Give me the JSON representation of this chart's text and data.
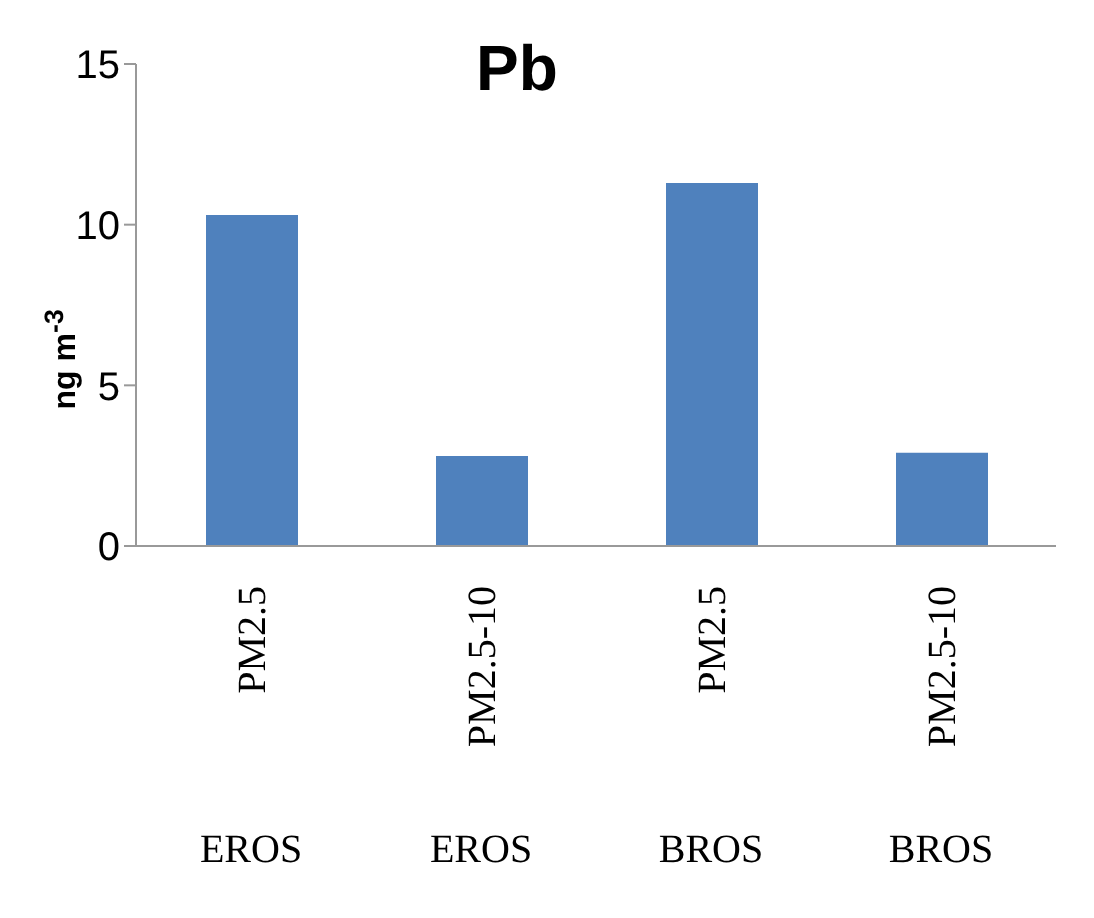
{
  "chart_data": {
    "type": "bar",
    "title": "Pb",
    "ylabel": "ng m$^{-3}$",
    "categories": [
      "PM2.5",
      "PM2.5-10",
      "PM2.5",
      "PM2.5-10"
    ],
    "annotations": [
      "EROS",
      "EROS",
      "BROS",
      "BROS"
    ],
    "values": [
      10.3,
      2.8,
      11.3,
      2.9
    ],
    "color": "#4f81bd",
    "ylim": [
      0,
      15
    ],
    "yticks": [
      0,
      5,
      10,
      15
    ],
    "grid": false
  }
}
